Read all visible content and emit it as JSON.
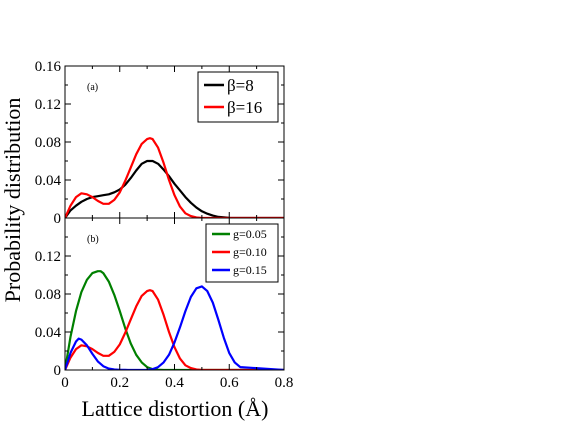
{
  "ylabel": "Probability distribution",
  "xlabel": "Lattice distortion (Å)",
  "chart_data": [
    {
      "type": "line",
      "panel_label": "(a)",
      "xlim": [
        0,
        0.8
      ],
      "ylim": [
        0,
        0.16
      ],
      "x_ticks": [
        0,
        0.2,
        0.4,
        0.6,
        0.8
      ],
      "y_ticks": [
        {
          "value": 0,
          "label": "0"
        },
        {
          "value": 0.04,
          "label": "0.04"
        },
        {
          "value": 0.08,
          "label": "0.08"
        },
        {
          "value": 0.12,
          "label": "0.12"
        },
        {
          "value": 0.16,
          "label": "0.16"
        }
      ],
      "show_x_tick_labels": false,
      "legend_position": "top-right",
      "legend_size": "large",
      "series": [
        {
          "name": "β=8",
          "color": "#000000",
          "x": [
            0,
            0.02,
            0.04,
            0.06,
            0.08,
            0.1,
            0.12,
            0.14,
            0.16,
            0.18,
            0.2,
            0.22,
            0.24,
            0.26,
            0.28,
            0.3,
            0.32,
            0.34,
            0.36,
            0.38,
            0.4,
            0.42,
            0.44,
            0.46,
            0.48,
            0.5,
            0.52,
            0.54,
            0.56,
            0.58,
            0.6,
            0.64,
            0.7,
            0.8
          ],
          "y": [
            0,
            0.008,
            0.013,
            0.017,
            0.02,
            0.022,
            0.023,
            0.024,
            0.025,
            0.027,
            0.03,
            0.035,
            0.042,
            0.05,
            0.057,
            0.06,
            0.06,
            0.057,
            0.051,
            0.044,
            0.036,
            0.029,
            0.022,
            0.016,
            0.011,
            0.007,
            0.0045,
            0.0025,
            0.0012,
            0.0006,
            0.0002,
            0,
            0,
            0
          ]
        },
        {
          "name": "β=16",
          "color": "#ff0000",
          "x": [
            0,
            0.02,
            0.04,
            0.06,
            0.08,
            0.1,
            0.12,
            0.14,
            0.16,
            0.18,
            0.2,
            0.22,
            0.24,
            0.26,
            0.28,
            0.3,
            0.31,
            0.32,
            0.34,
            0.36,
            0.38,
            0.4,
            0.42,
            0.44,
            0.46,
            0.48,
            0.5,
            0.55,
            0.6,
            0.8
          ],
          "y": [
            0,
            0.013,
            0.022,
            0.026,
            0.025,
            0.022,
            0.018,
            0.015,
            0.015,
            0.019,
            0.027,
            0.039,
            0.053,
            0.067,
            0.078,
            0.083,
            0.084,
            0.083,
            0.074,
            0.058,
            0.04,
            0.024,
            0.012,
            0.005,
            0.002,
            0.0005,
            0,
            0,
            0,
            0
          ]
        }
      ]
    },
    {
      "type": "line",
      "panel_label": "(b)",
      "xlim": [
        0,
        0.8
      ],
      "ylim": [
        0,
        0.16
      ],
      "x_ticks": [
        0,
        0.2,
        0.4,
        0.6,
        0.8
      ],
      "x_tick_labels": [
        "0",
        "0.2",
        "0.4",
        "0.6",
        "0.8"
      ],
      "y_ticks": [
        {
          "value": 0,
          "label": "0"
        },
        {
          "value": 0.04,
          "label": "0.04"
        },
        {
          "value": 0.08,
          "label": "0.08"
        },
        {
          "value": 0.12,
          "label": "0.12"
        },
        {
          "value": 0.16,
          "label": ""
        }
      ],
      "show_x_tick_labels": true,
      "legend_position": "top-right",
      "legend_size": "small",
      "series": [
        {
          "name": "g=0.05",
          "color": "#008000",
          "x": [
            0,
            0.02,
            0.04,
            0.06,
            0.08,
            0.1,
            0.12,
            0.13,
            0.14,
            0.16,
            0.18,
            0.2,
            0.22,
            0.24,
            0.26,
            0.28,
            0.3,
            0.32,
            0.34,
            0.36,
            0.8
          ],
          "y": [
            0,
            0.035,
            0.062,
            0.082,
            0.095,
            0.102,
            0.104,
            0.104,
            0.102,
            0.093,
            0.079,
            0.062,
            0.044,
            0.028,
            0.016,
            0.008,
            0.003,
            0.001,
            0.0003,
            0,
            0
          ]
        },
        {
          "name": "g=0.10",
          "color": "#ff0000",
          "x": [
            0,
            0.02,
            0.04,
            0.06,
            0.08,
            0.1,
            0.12,
            0.14,
            0.16,
            0.18,
            0.2,
            0.22,
            0.24,
            0.26,
            0.28,
            0.3,
            0.31,
            0.32,
            0.34,
            0.36,
            0.38,
            0.4,
            0.42,
            0.44,
            0.46,
            0.48,
            0.5,
            0.8
          ],
          "y": [
            0,
            0.013,
            0.022,
            0.026,
            0.025,
            0.022,
            0.018,
            0.015,
            0.015,
            0.019,
            0.027,
            0.039,
            0.053,
            0.067,
            0.078,
            0.083,
            0.084,
            0.083,
            0.074,
            0.058,
            0.04,
            0.024,
            0.012,
            0.005,
            0.002,
            0.0005,
            0,
            0
          ]
        },
        {
          "name": "g=0.15",
          "color": "#0000ff",
          "x": [
            0,
            0.02,
            0.04,
            0.05,
            0.06,
            0.08,
            0.1,
            0.12,
            0.14,
            0.16,
            0.18,
            0.2,
            0.22,
            0.24,
            0.26,
            0.3,
            0.32,
            0.34,
            0.36,
            0.38,
            0.4,
            0.42,
            0.44,
            0.46,
            0.48,
            0.5,
            0.52,
            0.54,
            0.56,
            0.58,
            0.6,
            0.62,
            0.64,
            0.8
          ],
          "y": [
            0,
            0.018,
            0.03,
            0.033,
            0.032,
            0.026,
            0.017,
            0.009,
            0.004,
            0.0015,
            0.0005,
            0.0002,
            0.0001,
            0,
            0,
            0,
            0.001,
            0.003,
            0.008,
            0.016,
            0.029,
            0.045,
            0.062,
            0.077,
            0.086,
            0.088,
            0.083,
            0.071,
            0.053,
            0.034,
            0.018,
            0.008,
            0.003,
            0
          ]
        }
      ]
    }
  ]
}
